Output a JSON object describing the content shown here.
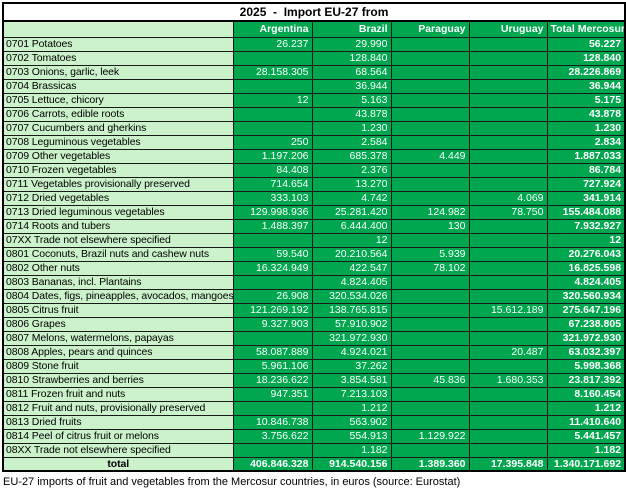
{
  "title": "2025  -  Import EU-27 from",
  "columns": [
    "Argentina",
    "Brazil",
    "Paraguay",
    "Uruguay",
    "Total Mercosur"
  ],
  "rows": [
    {
      "label": "0701 Potatoes",
      "values": [
        "26.237",
        "29.990",
        "",
        "",
        "56.227"
      ]
    },
    {
      "label": "0702 Tomatoes",
      "values": [
        "",
        "128.840",
        "",
        "",
        "128.840"
      ]
    },
    {
      "label": "0703 Onions, garlic, leek",
      "values": [
        "28.158.305",
        "68.564",
        "",
        "",
        "28.226.869"
      ]
    },
    {
      "label": "0704 Brassicas",
      "values": [
        "",
        "36.944",
        "",
        "",
        "36.944"
      ]
    },
    {
      "label": "0705 Lettuce, chicory",
      "values": [
        "12",
        "5.163",
        "",
        "",
        "5.175"
      ]
    },
    {
      "label": "0706 Carrots, edible roots",
      "values": [
        "",
        "43.878",
        "",
        "",
        "43.878"
      ]
    },
    {
      "label": "0707 Cucumbers and gherkins",
      "values": [
        "",
        "1.230",
        "",
        "",
        "1.230"
      ]
    },
    {
      "label": "0708 Leguminous vegetables",
      "values": [
        "250",
        "2.584",
        "",
        "",
        "2.834"
      ]
    },
    {
      "label": "0709 Other vegetables",
      "values": [
        "1.197.206",
        "685.378",
        "4.449",
        "",
        "1.887.033"
      ]
    },
    {
      "label": "0710 Frozen vegetables",
      "values": [
        "84.408",
        "2.376",
        "",
        "",
        "86.784"
      ]
    },
    {
      "label": "0711 Vegetables provisionally preserved",
      "values": [
        "714.654",
        "13.270",
        "",
        "",
        "727.924"
      ]
    },
    {
      "label": "0712 Dried vegetables",
      "values": [
        "333.103",
        "4.742",
        "",
        "4.069",
        "341.914"
      ]
    },
    {
      "label": "0713 Dried leguminous vegetables",
      "values": [
        "129.998.936",
        "25.281.420",
        "124.982",
        "78.750",
        "155.484.088"
      ]
    },
    {
      "label": "0714 Roots and tubers",
      "values": [
        "1.488.397",
        "6.444.400",
        "130",
        "",
        "7.932.927"
      ]
    },
    {
      "label": "07XX Trade not elsewhere specified",
      "values": [
        "",
        "12",
        "",
        "",
        "12"
      ]
    },
    {
      "label": "0801 Coconuts, Brazil nuts and cashew nuts",
      "values": [
        "59.540",
        "20.210.564",
        "5.939",
        "",
        "20.276.043"
      ]
    },
    {
      "label": "0802 Other nuts",
      "values": [
        "16.324.949",
        "422.547",
        "78.102",
        "",
        "16.825.598"
      ]
    },
    {
      "label": "0803 Bananas, incl. Plantains",
      "values": [
        "",
        "4.824.405",
        "",
        "",
        "4.824.405"
      ]
    },
    {
      "label": "0804 Dates, figs, pineapples, avocados, mangoes",
      "values": [
        "26.908",
        "320.534.026",
        "",
        "",
        "320.560.934"
      ]
    },
    {
      "label": "0805 Citrus fruit",
      "values": [
        "121.269.192",
        "138.765.815",
        "",
        "15.612.189",
        "275.647.196"
      ]
    },
    {
      "label": "0806 Grapes",
      "values": [
        "9.327.903",
        "57.910.902",
        "",
        "",
        "67.238.805"
      ]
    },
    {
      "label": "0807 Melons, watermelons, papayas",
      "values": [
        "",
        "321.972.930",
        "",
        "",
        "321.972.930"
      ]
    },
    {
      "label": "0808 Apples, pears and quinces",
      "values": [
        "58.087.889",
        "4.924.021",
        "",
        "20.487",
        "63.032.397"
      ]
    },
    {
      "label": "0809 Stone fruit",
      "values": [
        "5.961.106",
        "37.262",
        "",
        "",
        "5.998.368"
      ]
    },
    {
      "label": "0810 Strawberries and berries",
      "values": [
        "18.236.622",
        "3.854.581",
        "45.836",
        "1.680.353",
        "23.817.392"
      ]
    },
    {
      "label": "0811 Frozen fruit and nuts",
      "values": [
        "947.351",
        "7.213.103",
        "",
        "",
        "8.160.454"
      ]
    },
    {
      "label": "0812 Fruit and nuts, provisionally preserved",
      "values": [
        "",
        "1.212",
        "",
        "",
        "1.212"
      ]
    },
    {
      "label": "0813 Dried fruits",
      "values": [
        "10.846.738",
        "563.902",
        "",
        "",
        "11.410.640"
      ]
    },
    {
      "label": "0814 Peel of citrus fruit or melons",
      "values": [
        "",
        "554.913",
        "1.129.922",
        "",
        "5.441.457"
      ]
    },
    {
      "label": "08XX Trade not elsewhere specified",
      "values": [
        "",
        "1.182",
        "",
        "",
        "1.182"
      ]
    }
  ],
  "rows_fix": {
    "0814_argentina": "3.756.622"
  },
  "total_row": {
    "label": "total",
    "values": [
      "406.846.328",
      "914.540.156",
      "1.389.360",
      "17.395.848",
      "1.340.171.692"
    ]
  },
  "caption": "EU-27 imports of fruit and vegetables from the Mercosur countries, in euros (source: Eurostat)",
  "colors": {
    "cell_green": "#00A74F",
    "label_light_green": "#CCF2CC",
    "border_black": "#1A1A1A",
    "header_text_white": "#FFFFFF"
  }
}
